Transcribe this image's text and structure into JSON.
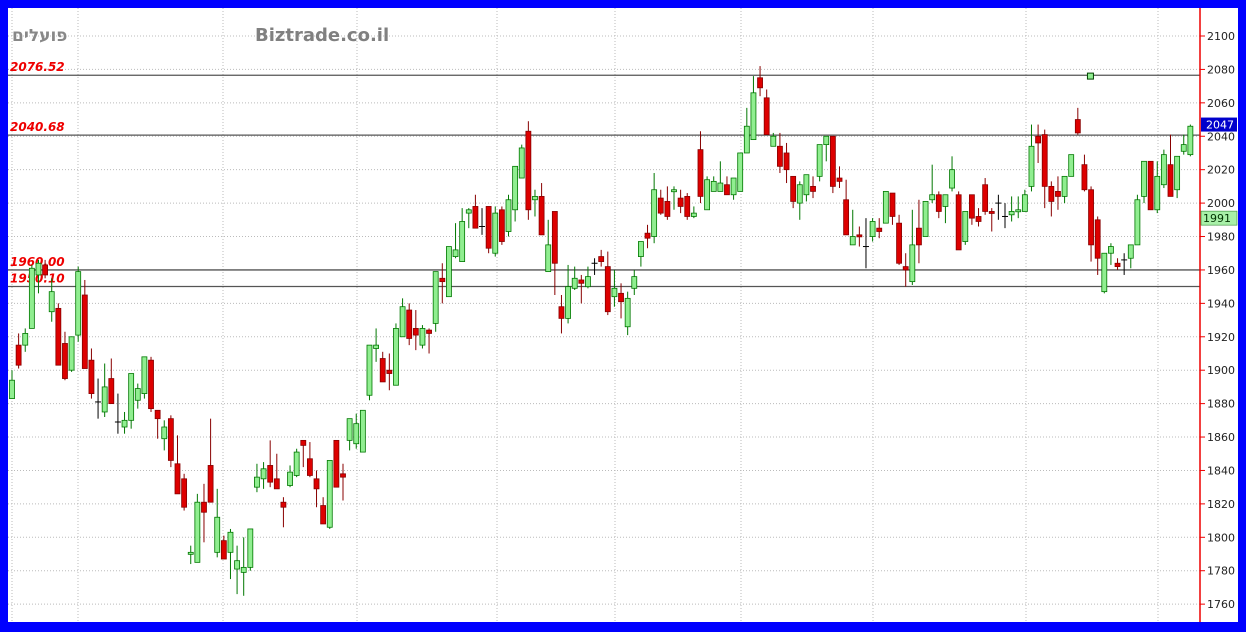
{
  "header": {
    "instrument_title": "פועלים",
    "watermark": "Biztrade.co.il"
  },
  "colors": {
    "frame": "#0000ff",
    "up": "#90ee90",
    "up_border": "#007700",
    "down": "#dd0000",
    "down_border": "#880000",
    "level_line": "#555555",
    "level_label": "#ee0000",
    "axis_line": "#ee0000",
    "last_price_bg": "#0000cc",
    "indicator_bg": "#a8f0a8"
  },
  "chart_data": {
    "type": "candlestick",
    "title": "",
    "xlabel": "",
    "ylabel": "",
    "ylim": [
      1750,
      2110
    ],
    "grid": true,
    "y_ticks": [
      1760,
      1780,
      1800,
      1820,
      1840,
      1860,
      1880,
      1900,
      1920,
      1940,
      1960,
      1980,
      2000,
      2020,
      2040,
      2060,
      2080,
      2100
    ],
    "y_tick_labels": [
      "1760",
      "1780",
      "1800",
      "1820",
      "1840",
      "1860",
      "1880",
      "1900",
      "1920",
      "1940",
      "1960",
      "1980",
      "2000",
      "2020",
      "2040",
      "2060",
      "2080",
      "2100"
    ],
    "levels": [
      {
        "value": 2076.52,
        "label": "2076.52"
      },
      {
        "value": 2040.68,
        "label": "2040.68"
      },
      {
        "value": 1960.0,
        "label": "1960.00"
      },
      {
        "value": 1950.1,
        "label": "1950.10"
      }
    ],
    "last_price": {
      "value": 2047,
      "label": "2047"
    },
    "indicator_value": {
      "value": 1991,
      "label": "1991"
    },
    "marker": {
      "index": 162,
      "value": 2076
    },
    "candles_ohlc": [
      [
        1883,
        1900,
        1883,
        1894
      ],
      [
        1915,
        1922,
        1901,
        1903
      ],
      [
        1915,
        1925,
        1911,
        1922
      ],
      [
        1925,
        1963,
        1925,
        1961
      ],
      [
        1957,
        1966,
        1946,
        1964
      ],
      [
        1963,
        1966,
        1955,
        1957
      ],
      [
        1935,
        1955,
        1929,
        1947
      ],
      [
        1937,
        1940,
        1903,
        1903
      ],
      [
        1916,
        1923,
        1894,
        1895
      ],
      [
        1900,
        1920,
        1899,
        1920
      ],
      [
        1921,
        1962,
        1917,
        1959
      ],
      [
        1945,
        1954,
        1901,
        1901
      ],
      [
        1906,
        1913,
        1883,
        1886
      ],
      [
        1881,
        1895,
        1871,
        1881
      ],
      [
        1875,
        1904,
        1872,
        1890
      ],
      [
        1895,
        1907,
        1880,
        1880
      ],
      [
        1869,
        1886,
        1862,
        1869
      ],
      [
        1866,
        1875,
        1862,
        1870
      ],
      [
        1870,
        1898,
        1865,
        1898
      ],
      [
        1882,
        1892,
        1877,
        1889
      ],
      [
        1886,
        1908,
        1883,
        1908
      ],
      [
        1906,
        1908,
        1875,
        1877
      ],
      [
        1876,
        1876,
        1859,
        1871
      ],
      [
        1859,
        1870,
        1852,
        1866
      ],
      [
        1871,
        1873,
        1842,
        1846
      ],
      [
        1844,
        1861,
        1826,
        1826
      ],
      [
        1835,
        1838,
        1816,
        1818
      ],
      [
        1790,
        1795,
        1784,
        1791
      ],
      [
        1785,
        1826,
        1785,
        1821
      ],
      [
        1821,
        1832,
        1797,
        1815
      ],
      [
        1843,
        1871,
        1821,
        1821
      ],
      [
        1791,
        1829,
        1788,
        1812
      ],
      [
        1798,
        1801,
        1787,
        1787
      ],
      [
        1791,
        1805,
        1775,
        1803
      ],
      [
        1781,
        1795,
        1766,
        1786
      ],
      [
        1779,
        1800,
        1765,
        1782
      ],
      [
        1782,
        1805,
        1780,
        1805
      ],
      [
        1830,
        1844,
        1827,
        1836
      ],
      [
        1835,
        1845,
        1829,
        1841
      ],
      [
        1843,
        1858,
        1830,
        1833
      ],
      [
        1835,
        1850,
        1829,
        1829
      ],
      [
        1821,
        1824,
        1806,
        1818
      ],
      [
        1831,
        1843,
        1830,
        1839
      ],
      [
        1837,
        1853,
        1836,
        1851
      ],
      [
        1858,
        1858,
        1842,
        1855
      ],
      [
        1847,
        1857,
        1836,
        1837
      ],
      [
        1835,
        1840,
        1818,
        1829
      ],
      [
        1819,
        1824,
        1808,
        1808
      ],
      [
        1806,
        1846,
        1805,
        1846
      ],
      [
        1858,
        1858,
        1830,
        1830
      ],
      [
        1838,
        1844,
        1822,
        1836
      ],
      [
        1858,
        1871,
        1852,
        1871
      ],
      [
        1856,
        1874,
        1853,
        1868
      ],
      [
        1851,
        1876,
        1851,
        1876
      ],
      [
        1885,
        1915,
        1882,
        1915
      ],
      [
        1913,
        1925,
        1905,
        1915
      ],
      [
        1907,
        1911,
        1893,
        1893
      ],
      [
        1900,
        1910,
        1888,
        1898
      ],
      [
        1891,
        1928,
        1891,
        1925
      ],
      [
        1920,
        1943,
        1920,
        1938
      ],
      [
        1936,
        1940,
        1915,
        1919
      ],
      [
        1925,
        1936,
        1912,
        1921
      ],
      [
        1915,
        1927,
        1913,
        1925
      ],
      [
        1924,
        1925,
        1910,
        1922
      ],
      [
        1928,
        1959,
        1923,
        1959
      ],
      [
        1955,
        1964,
        1940,
        1953
      ],
      [
        1944,
        1974,
        1944,
        1974
      ],
      [
        1968,
        1988,
        1967,
        1972
      ],
      [
        1965,
        1997,
        1965,
        1989
      ],
      [
        1994,
        1997,
        1985,
        1996
      ],
      [
        1998,
        2005,
        1985,
        1985
      ],
      [
        1986,
        1997,
        1981,
        1986
      ],
      [
        1998,
        1998,
        1970,
        1973
      ],
      [
        1970,
        1998,
        1968,
        1994
      ],
      [
        1996,
        1998,
        1975,
        1977
      ],
      [
        1983,
        2005,
        1980,
        2002
      ],
      [
        1996,
        2022,
        1989,
        2022
      ],
      [
        2015,
        2035,
        2015,
        2033
      ],
      [
        2043,
        2049,
        1990,
        1996
      ],
      [
        2002,
        2008,
        1992,
        2004
      ],
      [
        2004,
        2012,
        1981,
        1981
      ],
      [
        1959,
        1990,
        1959,
        1975
      ],
      [
        1995,
        1995,
        1945,
        1964
      ],
      [
        1938,
        1945,
        1922,
        1931
      ],
      [
        1931,
        1963,
        1928,
        1950
      ],
      [
        1949,
        1962,
        1948,
        1955
      ],
      [
        1954,
        1957,
        1940,
        1952
      ],
      [
        1950,
        1962,
        1949,
        1956
      ],
      [
        1964,
        1967,
        1957,
        1964
      ],
      [
        1968,
        1972,
        1962,
        1965
      ],
      [
        1962,
        1971,
        1933,
        1935
      ],
      [
        1944,
        1960,
        1938,
        1949
      ],
      [
        1946,
        1952,
        1931,
        1941
      ],
      [
        1926,
        1947,
        1921,
        1943
      ],
      [
        1949,
        1960,
        1945,
        1956
      ],
      [
        1968,
        1977,
        1962,
        1977
      ],
      [
        1982,
        1987,
        1973,
        1979
      ],
      [
        1980,
        2018,
        1976,
        2008
      ],
      [
        2003,
        2008,
        1993,
        1994
      ],
      [
        2001,
        2010,
        1990,
        1992
      ],
      [
        2007,
        2010,
        1996,
        2008
      ],
      [
        2003,
        2008,
        1994,
        1998
      ],
      [
        2004,
        2006,
        1990,
        1992
      ],
      [
        1992,
        1998,
        1991,
        1994
      ],
      [
        2032,
        2043,
        2000,
        2004
      ],
      [
        1996,
        2016,
        1996,
        2014
      ],
      [
        2007,
        2016,
        2007,
        2013
      ],
      [
        2007,
        2025,
        2007,
        2012
      ],
      [
        2011,
        2016,
        2005,
        2005
      ],
      [
        2005,
        2015,
        2002,
        2015
      ],
      [
        2007,
        2030,
        2007,
        2030
      ],
      [
        2030,
        2057,
        2030,
        2046
      ],
      [
        2038,
        2076,
        2038,
        2066
      ],
      [
        2075,
        2082,
        2064,
        2069
      ],
      [
        2063,
        2068,
        2041,
        2041
      ],
      [
        2034,
        2042,
        2034,
        2040
      ],
      [
        2034,
        2042,
        2018,
        2022
      ],
      [
        2030,
        2036,
        2012,
        2020
      ],
      [
        2016,
        2016,
        1997,
        2001
      ],
      [
        2000,
        2013,
        1990,
        2011
      ],
      [
        2005,
        2017,
        2001,
        2017
      ],
      [
        2010,
        2016,
        2003,
        2007
      ],
      [
        2016,
        2035,
        2013,
        2035
      ],
      [
        2035,
        2040,
        2025,
        2040
      ],
      [
        2040,
        2040,
        2006,
        2010
      ],
      [
        2015,
        2022,
        2009,
        2013
      ],
      [
        2002,
        2014,
        1981,
        1981
      ],
      [
        1975,
        1996,
        1975,
        1980
      ],
      [
        1981,
        1986,
        1974,
        1980
      ],
      [
        1974,
        1991,
        1961,
        1974
      ],
      [
        1980,
        1991,
        1977,
        1989
      ],
      [
        1985,
        1991,
        1979,
        1983
      ],
      [
        1988,
        2007,
        1988,
        2007
      ],
      [
        2006,
        2006,
        1987,
        1992
      ],
      [
        1988,
        1993,
        1963,
        1964
      ],
      [
        1962,
        1970,
        1950,
        1960
      ],
      [
        1953,
        1996,
        1951,
        1975
      ],
      [
        1985,
        2002,
        1964,
        1975
      ],
      [
        1980,
        2001,
        1980,
        2001
      ],
      [
        2002,
        2023,
        2000,
        2005
      ],
      [
        2005,
        2007,
        1991,
        1995
      ],
      [
        1998,
        2005,
        1988,
        2005
      ],
      [
        2009,
        2028,
        2007,
        2020
      ],
      [
        2005,
        2007,
        1972,
        1972
      ],
      [
        1977,
        1995,
        1975,
        1995
      ],
      [
        2005,
        2005,
        1987,
        1991
      ],
      [
        1992,
        1997,
        1986,
        1989
      ],
      [
        2011,
        2015,
        1993,
        1995
      ],
      [
        1995,
        1997,
        1983,
        1994
      ],
      [
        2000,
        2005,
        1990,
        2000
      ],
      [
        1992,
        2000,
        1985,
        1992
      ],
      [
        1993,
        2004,
        1989,
        1995
      ],
      [
        1995,
        2004,
        1991,
        1996
      ],
      [
        1995,
        2008,
        1995,
        2005
      ],
      [
        2010,
        2047,
        2007,
        2034
      ],
      [
        2040,
        2047,
        2024,
        2036
      ],
      [
        2041,
        2044,
        1997,
        2010
      ],
      [
        2010,
        2013,
        1992,
        2001
      ],
      [
        2007,
        2016,
        1996,
        2004
      ],
      [
        2004,
        2016,
        2000,
        2016
      ],
      [
        2016,
        2029,
        2016,
        2029
      ],
      [
        2050,
        2057,
        2041,
        2042
      ],
      [
        2023,
        2029,
        2007,
        2008
      ],
      [
        2008,
        2010,
        1965,
        1975
      ],
      [
        1990,
        1992,
        1957,
        1967
      ],
      [
        1947,
        1970,
        1946,
        1970
      ],
      [
        1970,
        1976,
        1963,
        1974
      ],
      [
        1964,
        1967,
        1960,
        1962
      ],
      [
        1966,
        1970,
        1957,
        1966
      ],
      [
        1967,
        1975,
        1961,
        1975
      ],
      [
        1975,
        2005,
        1975,
        2002
      ],
      [
        2004,
        2025,
        2000,
        2025
      ],
      [
        2025,
        2025,
        1996,
        1996
      ],
      [
        1996,
        2025,
        1994,
        2016
      ],
      [
        2011,
        2032,
        2009,
        2029
      ],
      [
        2023,
        2041,
        2004,
        2004
      ],
      [
        2008,
        2028,
        2003,
        2028
      ],
      [
        2031,
        2041,
        2029,
        2035
      ],
      [
        2029,
        2047,
        2028,
        2046
      ]
    ]
  }
}
